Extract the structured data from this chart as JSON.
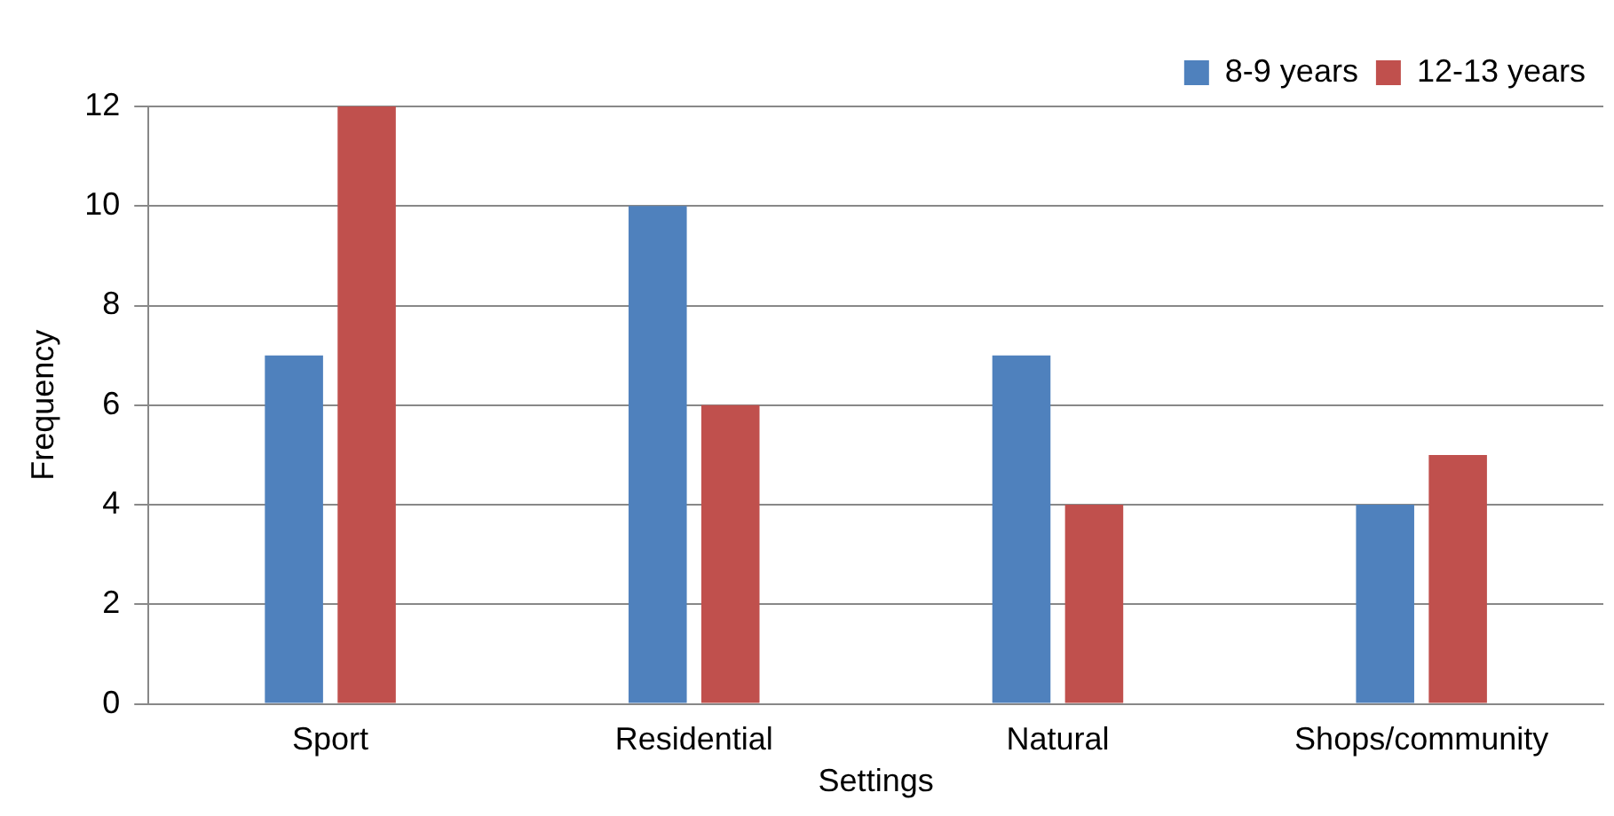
{
  "chart_data": {
    "type": "bar",
    "xlabel": "Settings",
    "ylabel": "Frequency",
    "categories": [
      "Sport",
      "Residential",
      "Natural",
      "Shops/community"
    ],
    "series": [
      {
        "name": "8-9 years",
        "color": "#4f81bd",
        "values": [
          7,
          10,
          7,
          4
        ]
      },
      {
        "name": "12-13 years",
        "color": "#c0504d",
        "values": [
          12,
          6,
          4,
          5
        ]
      }
    ],
    "ylim": [
      0,
      12
    ],
    "yticks": [
      0,
      2,
      4,
      6,
      8,
      10,
      12
    ],
    "grid": "y",
    "legend": "top right"
  }
}
